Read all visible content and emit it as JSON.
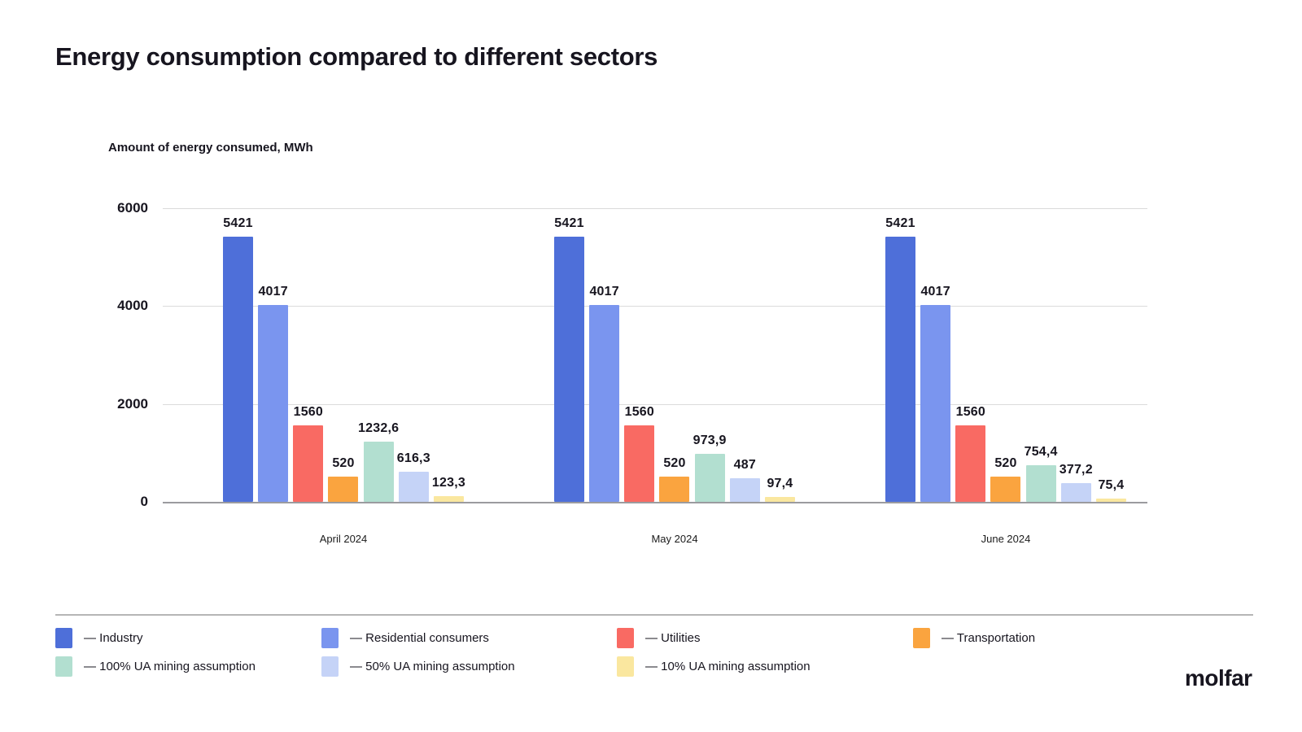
{
  "page": {
    "title": "Energy consumption compared to different sectors",
    "footer_logo": "molfar"
  },
  "chart_data": {
    "type": "bar",
    "title": "Energy consumption compared to different sectors",
    "ylabel": "Amount of energy consumed, MWh",
    "xlabel": "",
    "ylim": [
      0,
      6000
    ],
    "yticks": [
      6000,
      4000,
      2000,
      0
    ],
    "grid": true,
    "legend_position": "bottom",
    "legend_dash": "—",
    "categories": [
      "April 2024",
      "May 2024",
      "June 2024"
    ],
    "series": [
      {
        "name": "Industry",
        "color": "#4E6FD9",
        "values": [
          5421,
          5421,
          5421
        ],
        "labels": [
          "5421",
          "5421",
          "5421"
        ]
      },
      {
        "name": "Residential consumers",
        "color": "#7A95EF",
        "values": [
          4017,
          4017,
          4017
        ],
        "labels": [
          "4017",
          "4017",
          "4017"
        ]
      },
      {
        "name": "Utilities",
        "color": "#F96A63",
        "values": [
          1560,
          1560,
          1560
        ],
        "labels": [
          "1560",
          "1560",
          "1560"
        ]
      },
      {
        "name": "Transportation",
        "color": "#FAA43F",
        "values": [
          520,
          520,
          520
        ],
        "labels": [
          "520",
          "520",
          "520"
        ]
      },
      {
        "name": "100% UA mining assumption",
        "color": "#B2DFD0",
        "values": [
          1232.6,
          973.9,
          754.4
        ],
        "labels": [
          "1232,6",
          "973,9",
          "754,4"
        ]
      },
      {
        "name": "50% UA mining assumption",
        "color": "#C5D3F7",
        "values": [
          616.3,
          487,
          377.2
        ],
        "labels": [
          "616,3",
          "487",
          "377,2"
        ]
      },
      {
        "name": "10% UA mining assumption",
        "color": "#FAE79F",
        "values": [
          123.3,
          97.4,
          75.4
        ],
        "labels": [
          "123,3",
          "97,4",
          "75,4"
        ]
      }
    ]
  }
}
